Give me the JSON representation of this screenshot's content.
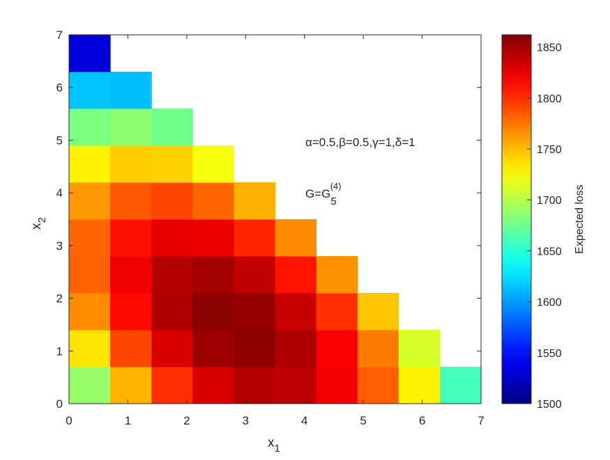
{
  "chart_data": {
    "type": "heatmap",
    "x_label": {
      "text": "x",
      "subscript": "1"
    },
    "y_label": {
      "text": "x",
      "subscript": "2"
    },
    "annotations": [
      {
        "text": "α=0.5,β=0.5,γ=1,δ=1"
      },
      {
        "text": "G=G",
        "subscript": "5",
        "superscript": "(4)"
      }
    ],
    "x": [
      0.35,
      1.05,
      1.75,
      2.45,
      3.15,
      3.85,
      4.55,
      5.25,
      5.95,
      6.65
    ],
    "y": [
      0.35,
      1.05,
      1.75,
      2.45,
      3.15,
      3.85,
      4.55,
      5.25,
      5.95,
      6.65
    ],
    "values": [
      [
        1689,
        1753,
        1800,
        1830,
        1843,
        1840,
        1820,
        1783,
        1730,
        1660
      ],
      [
        1736,
        1792,
        1830,
        1852,
        1857,
        1846,
        1818,
        1773,
        1712,
        null
      ],
      [
        1767,
        1814,
        1845,
        1858,
        1855,
        1836,
        1800,
        1747,
        null,
        null
      ],
      [
        1782,
        1821,
        1843,
        1849,
        1838,
        1810,
        1765,
        null,
        null,
        null
      ],
      [
        1781,
        1811,
        1825,
        1823,
        1804,
        1768,
        null,
        null,
        null,
        null
      ],
      [
        1763,
        1786,
        1792,
        1781,
        1754,
        null,
        null,
        null,
        null,
        null
      ],
      [
        1730,
        1744,
        1742,
        1723,
        null,
        null,
        null,
        null,
        null,
        null
      ],
      [
        1680,
        1687,
        1676,
        null,
        null,
        null,
        null,
        null,
        null,
        null
      ],
      [
        1615,
        1613,
        null,
        null,
        null,
        null,
        null,
        null,
        null,
        null
      ],
      [
        1533,
        null,
        null,
        null,
        null,
        null,
        null,
        null,
        null,
        null
      ]
    ],
    "xlim": [
      0,
      7
    ],
    "xticks": [
      0,
      1,
      2,
      3,
      4,
      5,
      6,
      7
    ],
    "ylim": [
      0,
      7
    ],
    "yticks": [
      0,
      1,
      2,
      3,
      4,
      5,
      6,
      7
    ],
    "colormap": "jet",
    "colorbar": {
      "label": "Expected loss",
      "lim": [
        1500,
        1862
      ],
      "ticks": [
        1500,
        1550,
        1600,
        1650,
        1700,
        1750,
        1800,
        1850
      ]
    }
  }
}
